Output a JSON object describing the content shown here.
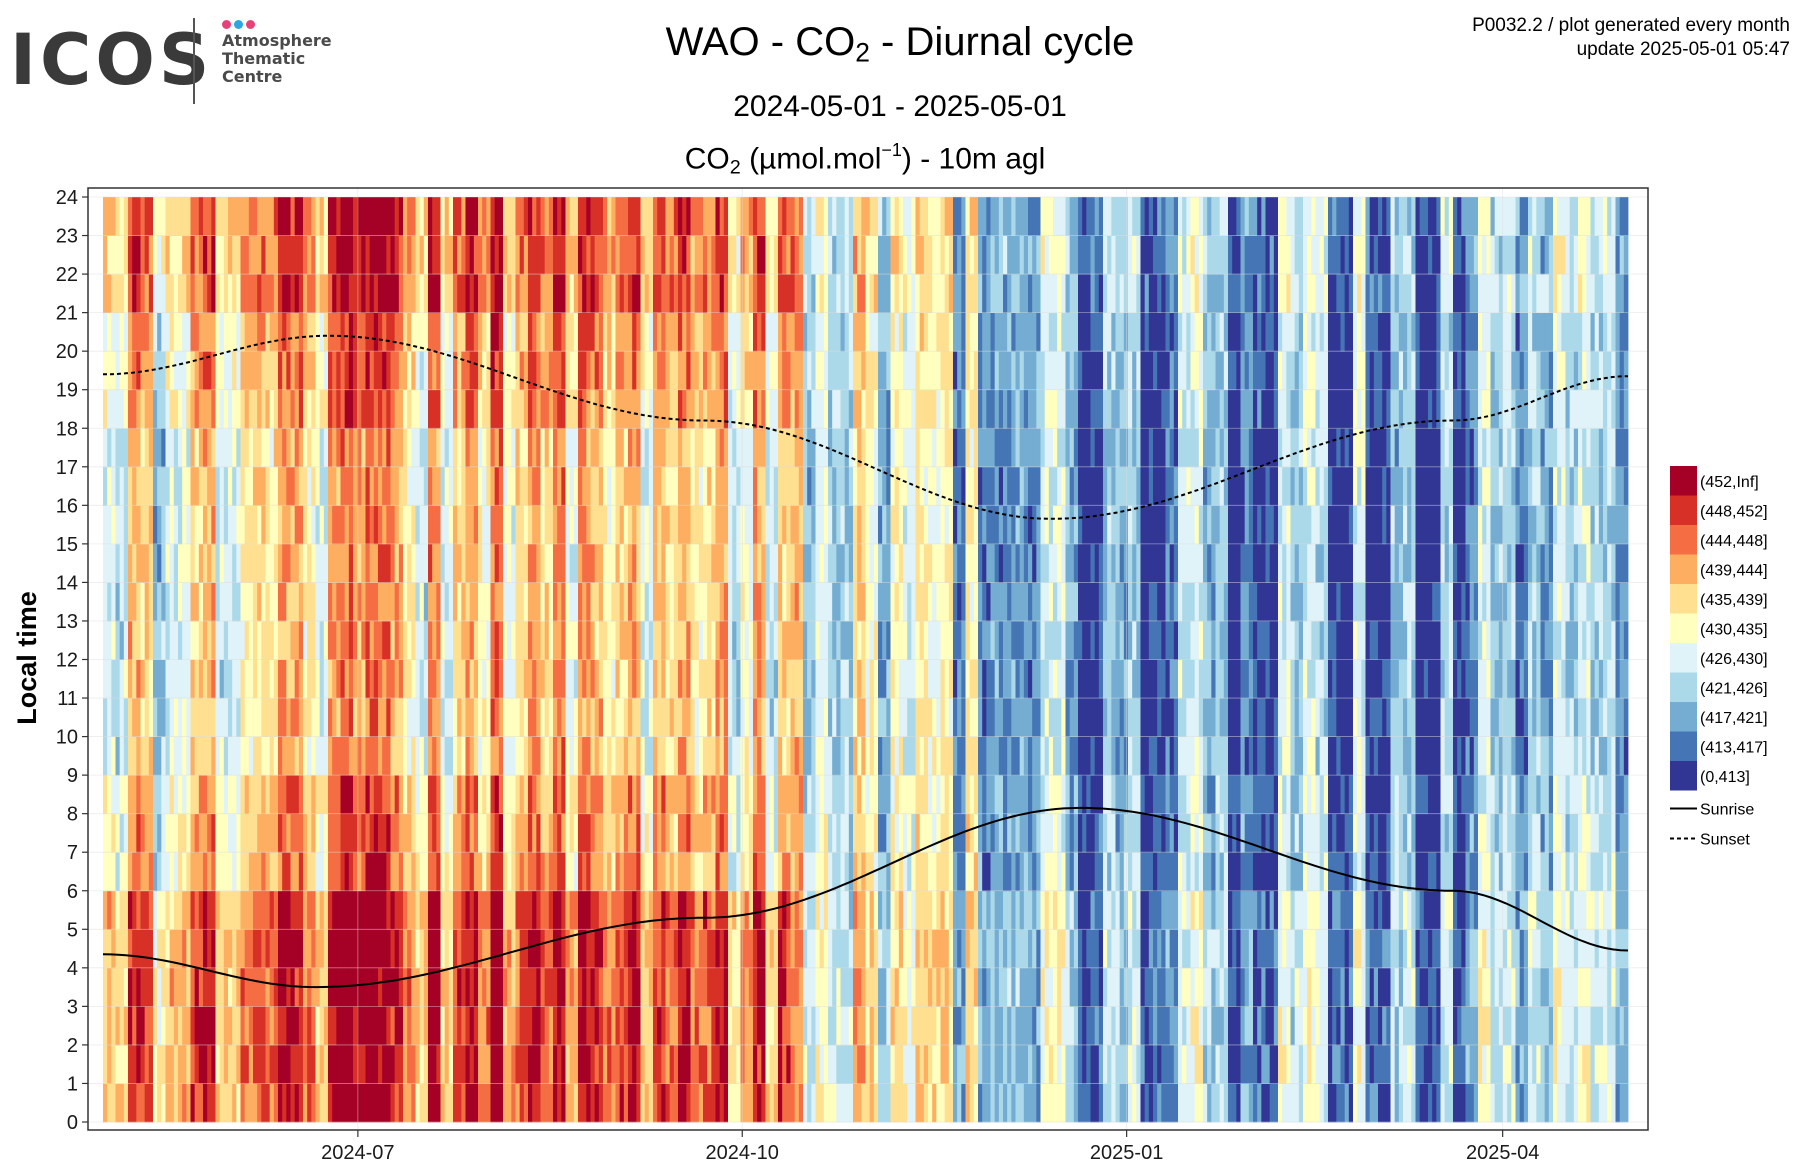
{
  "header": {
    "logo_word": "ICOS",
    "logo_lines": [
      "Atmosphere",
      "Thematic",
      "Centre"
    ],
    "logo_dot_colors": [
      "#e8417a",
      "#2da7e0",
      "#e8417a"
    ],
    "title_prefix": "WAO - CO",
    "title_sub": "2",
    "title_suffix": " - Diurnal cycle",
    "subtitle": "2024-05-01 - 2025-05-01",
    "units_prefix": "CO",
    "units_sub": "2",
    "units_mid": " (µmol.mol",
    "units_sup": "−1",
    "units_suffix": ") - 10m agl",
    "meta_line1": "P0032.2 / plot generated every month",
    "meta_line2": "update  2025-05-01 05:47"
  },
  "chart_data": {
    "type": "heatmap",
    "title": "WAO - CO2 - Diurnal cycle",
    "subtitle": "2024-05-01 - 2025-05-01",
    "variable": "CO2 (µmol.mol-1) - 10m agl",
    "x_axis": {
      "start": "2024-05-01",
      "end": "2025-05-01",
      "ticks": [
        {
          "date": "2024-07-01",
          "label": "2024-07"
        },
        {
          "date": "2024-10-01",
          "label": "2024-10"
        },
        {
          "date": "2025-01-01",
          "label": "2025-01"
        },
        {
          "date": "2025-04-01",
          "label": "2025-04"
        }
      ]
    },
    "y_axis": {
      "label": "Local time",
      "range": [
        0,
        24
      ],
      "ticks": [
        0,
        1,
        2,
        3,
        4,
        5,
        6,
        7,
        8,
        9,
        10,
        11,
        12,
        13,
        14,
        15,
        16,
        17,
        18,
        19,
        20,
        21,
        22,
        23,
        24
      ]
    },
    "legend": {
      "placement": "right",
      "bins": [
        {
          "label": "(452,Inf]",
          "color": "#a50026"
        },
        {
          "label": "(448,452]",
          "color": "#d73027"
        },
        {
          "label": "(444,448]",
          "color": "#f46d43"
        },
        {
          "label": "(439,444]",
          "color": "#fdae61"
        },
        {
          "label": "(435,439]",
          "color": "#fee090"
        },
        {
          "label": "(430,435]",
          "color": "#ffffbf"
        },
        {
          "label": "(426,430]",
          "color": "#e0f3f8"
        },
        {
          "label": "(421,426]",
          "color": "#abd9e9"
        },
        {
          "label": "(417,421]",
          "color": "#74add1"
        },
        {
          "label": "(413,417]",
          "color": "#4575b4"
        },
        {
          "label": "(0,413]",
          "color": "#313695"
        }
      ],
      "lines": [
        {
          "label": "Sunrise",
          "style": "solid"
        },
        {
          "label": "Sunset",
          "style": "dashed"
        }
      ]
    },
    "monthly_level_bins": [
      5,
      6,
      7,
      7,
      7,
      6,
      4,
      3,
      2,
      2,
      2,
      2,
      2
    ],
    "sunrise_curve": [
      {
        "date": "2024-05-01",
        "hour": 4.35
      },
      {
        "date": "2024-06-21",
        "hour": 3.5
      },
      {
        "date": "2024-09-22",
        "hour": 5.3
      },
      {
        "date": "2024-12-21",
        "hour": 8.15
      },
      {
        "date": "2025-03-20",
        "hour": 6.0
      },
      {
        "date": "2025-05-01",
        "hour": 4.45
      }
    ],
    "sunset_curve": [
      {
        "date": "2024-05-01",
        "hour": 19.4
      },
      {
        "date": "2024-06-24",
        "hour": 20.4
      },
      {
        "date": "2024-09-22",
        "hour": 18.2
      },
      {
        "date": "2024-12-14",
        "hour": 15.65
      },
      {
        "date": "2025-03-20",
        "hour": 18.2
      },
      {
        "date": "2025-05-01",
        "hour": 19.35
      }
    ]
  }
}
